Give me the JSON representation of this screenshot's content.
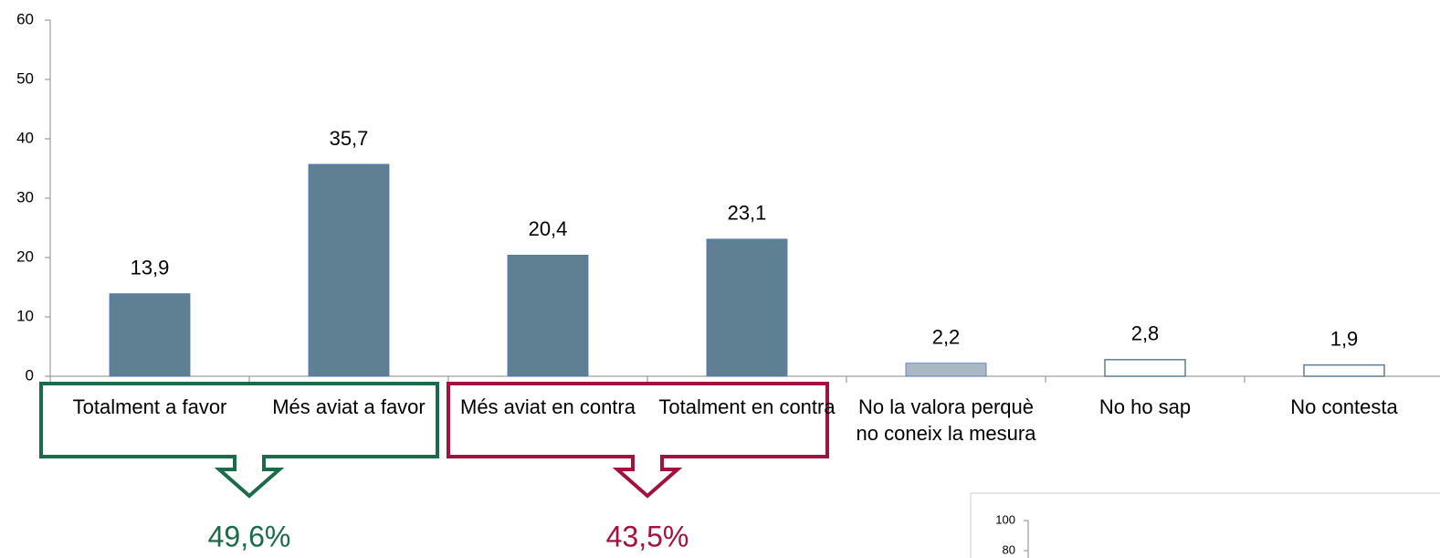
{
  "chart_data": {
    "type": "bar",
    "categories": [
      "Totalment a favor",
      "Més aviat a favor",
      "Més aviat en contra",
      "Totalment en contra",
      "No la valora perquè no coneix la mesura",
      "No ho sap",
      "No contesta"
    ],
    "values": [
      13.9,
      35.7,
      20.4,
      23.1,
      2.2,
      2.8,
      1.9
    ],
    "value_labels": [
      "13,9",
      "35,7",
      "20,4",
      "23,1",
      "2,2",
      "2,8",
      "1,9"
    ],
    "colors": [
      "#5f7f93",
      "#5f7f93",
      "#5f7f93",
      "#5f7f93",
      "#a9b8c2",
      "#ffffff",
      "#ffffff"
    ],
    "ylim": [
      0,
      60
    ],
    "yticks": [
      0,
      10,
      20,
      30,
      40,
      50,
      60
    ],
    "groups": [
      {
        "categories": [
          0,
          1
        ],
        "color": "#1a6b47",
        "total": {
          "value": 49.6,
          "label": "49,6%"
        }
      },
      {
        "categories": [
          2,
          3
        ],
        "color": "#a3123e",
        "total": {
          "value": 43.5,
          "label": "43,5%"
        }
      }
    ],
    "inset": {
      "yticks": [
        100,
        80
      ]
    }
  }
}
